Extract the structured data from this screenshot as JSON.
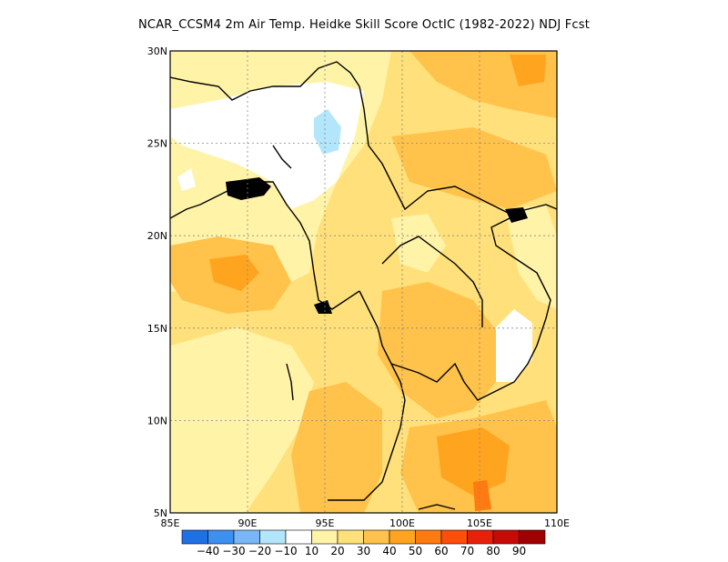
{
  "title": "NCAR_CCSM4  2m Air Temp. Heidke Skill Score OctIC (1982-2022) NDJ Fcst",
  "map": {
    "lon_range": [
      85,
      110
    ],
    "lat_range": [
      5,
      30
    ],
    "lon_ticks": [
      "85E",
      "90E",
      "95E",
      "100E",
      "105E",
      "110E"
    ],
    "lat_ticks": [
      "5N",
      "10N",
      "15N",
      "20N",
      "25N",
      "30N"
    ],
    "grid": "dotted"
  },
  "colorbar": {
    "colors": [
      "#1f6fe6",
      "#3d8ff0",
      "#78b6f5",
      "#b4e6fb",
      "#ffffff",
      "#fff3a8",
      "#ffe07a",
      "#ffc24a",
      "#ffa41f",
      "#ff7a0f",
      "#ff4d0a",
      "#e8200a",
      "#c80a06",
      "#a00000"
    ],
    "labels": [
      "-40",
      "-30",
      "-20",
      "-10",
      "10",
      "20",
      "30",
      "40",
      "50",
      "60",
      "70",
      "80",
      "90"
    ]
  }
}
